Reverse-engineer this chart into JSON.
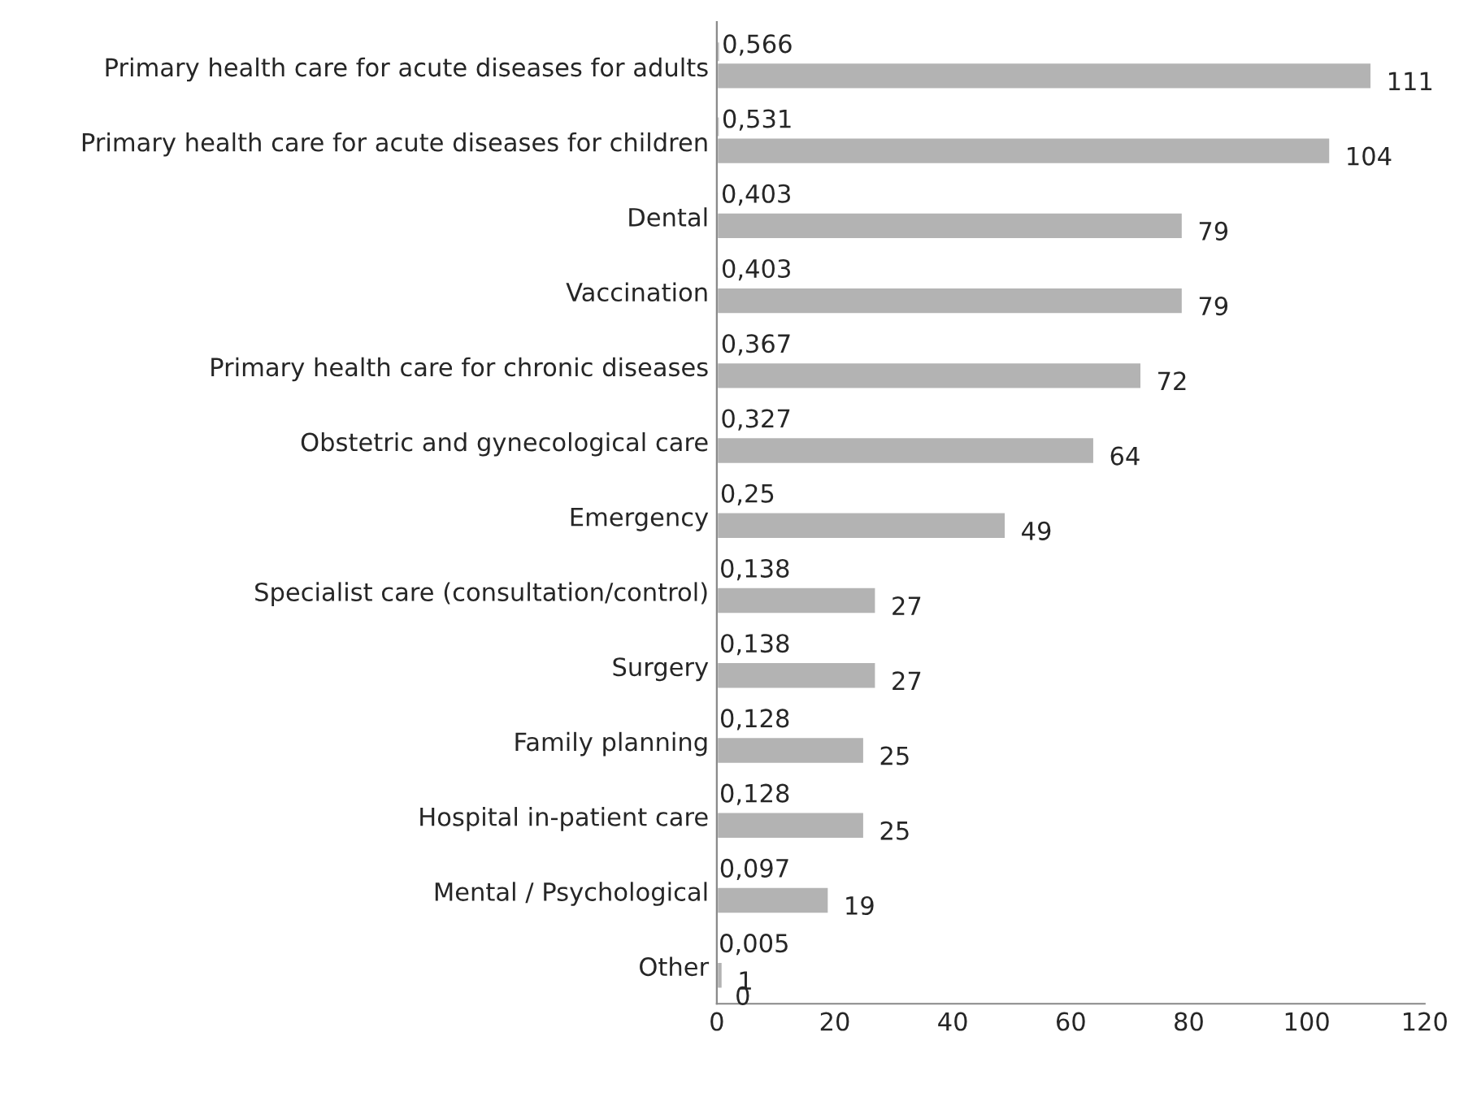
{
  "chart_data": {
    "type": "bar",
    "orientation": "horizontal",
    "categories": [
      "Primary health care for acute diseases for adults",
      "Primary health care for acute diseases for children",
      "Dental",
      "Vaccination",
      "Primary health care for chronic diseases",
      "Obstetric and gynecological care",
      "Emergency",
      "Specialist care (consultation/control)",
      "Surgery",
      "Family planning",
      "Hospital in-patient care",
      "Mental / Psychological",
      "Other"
    ],
    "series": [
      {
        "color": "#b3b3b3",
        "values": [
          0.566,
          0.531,
          0.403,
          0.403,
          0.367,
          0.327,
          0.25,
          0.138,
          0.138,
          0.128,
          0.128,
          0.097,
          0.005
        ],
        "value_labels": [
          "0,566",
          "0,531",
          "0,403",
          "0,403",
          "0,367",
          "0,327",
          "0,25",
          "0,138",
          "0,138",
          "0,128",
          "0,128",
          "0,097",
          "0,005"
        ]
      },
      {
        "color": "#b3b3b3",
        "values": [
          111,
          104,
          79,
          79,
          72,
          64,
          49,
          27,
          27,
          25,
          25,
          19,
          1
        ],
        "value_labels": [
          "111",
          "104",
          "79",
          "79",
          "72",
          "64",
          "49",
          "27",
          "27",
          "25",
          "25",
          "19",
          "1"
        ]
      }
    ],
    "xlim": [
      0,
      120
    ],
    "xticks": [
      0,
      20,
      40,
      60,
      80,
      100,
      120
    ],
    "annotations": [
      {
        "text": "0",
        "x": 0,
        "y": "Other"
      }
    ],
    "grid": false,
    "legend": false
  }
}
